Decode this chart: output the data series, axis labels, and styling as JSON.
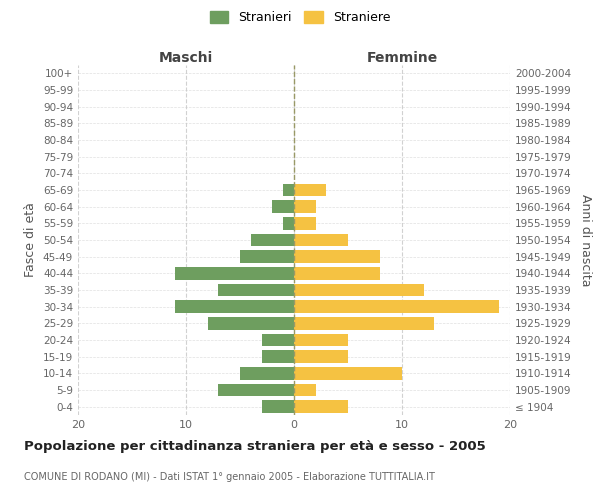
{
  "age_groups": [
    "100+",
    "95-99",
    "90-94",
    "85-89",
    "80-84",
    "75-79",
    "70-74",
    "65-69",
    "60-64",
    "55-59",
    "50-54",
    "45-49",
    "40-44",
    "35-39",
    "30-34",
    "25-29",
    "20-24",
    "15-19",
    "10-14",
    "5-9",
    "0-4"
  ],
  "birth_years": [
    "≤ 1904",
    "1905-1909",
    "1910-1914",
    "1915-1919",
    "1920-1924",
    "1925-1929",
    "1930-1934",
    "1935-1939",
    "1940-1944",
    "1945-1949",
    "1950-1954",
    "1955-1959",
    "1960-1964",
    "1965-1969",
    "1970-1974",
    "1975-1979",
    "1980-1984",
    "1985-1989",
    "1990-1994",
    "1995-1999",
    "2000-2004"
  ],
  "maschi": [
    0,
    0,
    0,
    0,
    0,
    0,
    0,
    1,
    2,
    1,
    4,
    5,
    11,
    7,
    11,
    8,
    3,
    3,
    5,
    7,
    3
  ],
  "femmine": [
    0,
    0,
    0,
    0,
    0,
    0,
    0,
    3,
    2,
    2,
    5,
    8,
    8,
    12,
    19,
    13,
    5,
    5,
    10,
    2,
    5
  ],
  "color_maschi": "#6e9e5f",
  "color_femmine": "#f5c242",
  "title": "Popolazione per cittadinanza straniera per età e sesso - 2005",
  "subtitle": "COMUNE DI RODANO (MI) - Dati ISTAT 1° gennaio 2005 - Elaborazione TUTTITALIA.IT",
  "xlabel_left": "Maschi",
  "xlabel_right": "Femmine",
  "ylabel_left": "Fasce di età",
  "ylabel_right": "Anni di nascita",
  "legend_stranieri": "Stranieri",
  "legend_straniere": "Straniere",
  "xlim": 20,
  "bg_color": "#ffffff",
  "grid_color": "#cccccc"
}
